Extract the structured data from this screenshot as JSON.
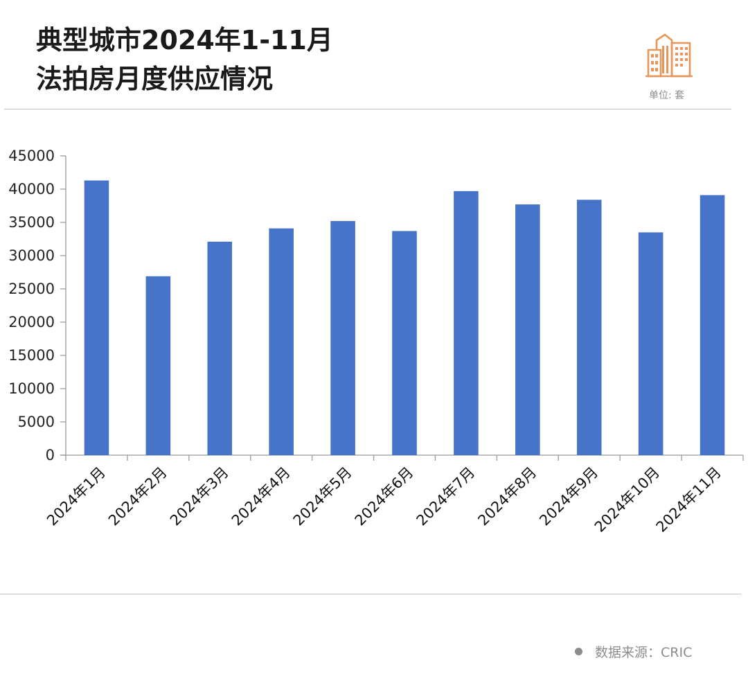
{
  "header": {
    "title_line1": "典型城市2024年1-11月",
    "title_line2": "法拍房月度供应情况",
    "unit": "单位: 套",
    "logo_icon": "city-buildings-icon",
    "accent_color": "#e8955a"
  },
  "footer": {
    "source": "数据来源：CRIC"
  },
  "chart_data": {
    "type": "bar",
    "categories": [
      "2024年1月",
      "2024年2月",
      "2024年3月",
      "2024年4月",
      "2024年5月",
      "2024年6月",
      "2024年7月",
      "2024年8月",
      "2024年9月",
      "2024年10月",
      "2024年11月"
    ],
    "values": [
      41300,
      26900,
      32100,
      34100,
      35200,
      33700,
      39700,
      37700,
      38400,
      33500,
      39100
    ],
    "ylim": [
      0,
      45000
    ],
    "yticks": [
      0,
      5000,
      10000,
      15000,
      20000,
      25000,
      30000,
      35000,
      40000,
      45000
    ],
    "bar_color": "#4674c9",
    "grid": false,
    "legend": "none"
  }
}
